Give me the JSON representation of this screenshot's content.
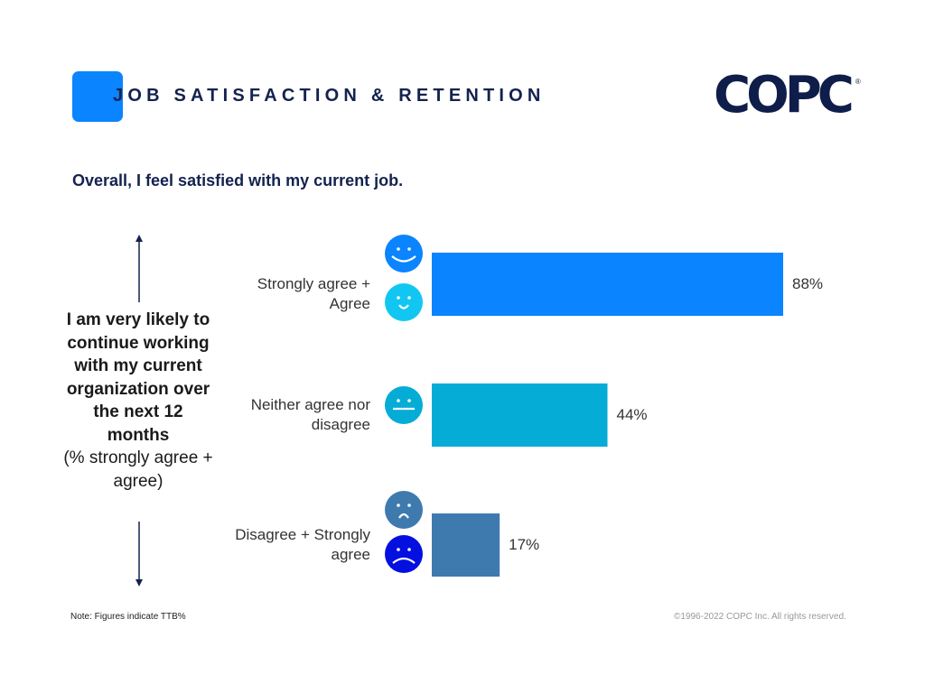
{
  "header": {
    "title": "JOB SATISFACTION & RETENTION",
    "logo_text": "COPC",
    "logo_mark": "®"
  },
  "question": "Overall, I feel satisfied with my current job.",
  "side_label": {
    "bold": "I am very likely to continue working with my current organization over the next 12 months",
    "normal": "(% strongly agree + agree)"
  },
  "chart_data": {
    "type": "bar",
    "orientation": "horizontal",
    "categories": [
      "Strongly agree + Agree",
      "Neither agree nor disagree",
      "Disagree + Strongly agree"
    ],
    "values": [
      88,
      44,
      17
    ],
    "data_labels": [
      "88%",
      "44%",
      "17%"
    ],
    "colors": [
      "#0a84ff",
      "#05acd6",
      "#3f7aaf"
    ],
    "icons": [
      [
        "very-happy-face",
        "happy-face"
      ],
      [
        "neutral-face"
      ],
      [
        "sad-face",
        "very-sad-face"
      ]
    ],
    "icon_colors": [
      [
        "#0a84ff",
        "#12c6f2"
      ],
      [
        "#05acd6"
      ],
      [
        "#3f7aaf",
        "#0410e0"
      ]
    ],
    "xlim": [
      0,
      100
    ],
    "grid": false
  },
  "footer": {
    "note": "Note: Figures indicate TTB%",
    "copyright": "©1996-2022 COPC Inc. All rights reserved."
  }
}
